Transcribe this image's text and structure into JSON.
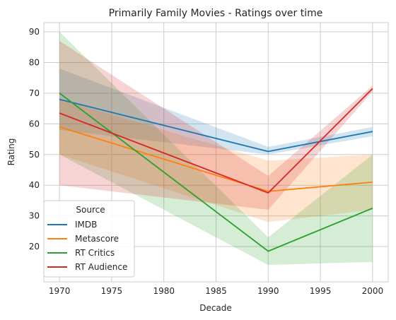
{
  "chart_data": {
    "type": "line",
    "title": "Primarily Family Movies - Ratings over time",
    "xlabel": "Decade",
    "ylabel": "Rating",
    "x": [
      1970,
      1990,
      2000
    ],
    "xlim": [
      1968.5,
      2001.5
    ],
    "ylim": [
      8.5,
      93
    ],
    "xticks": [
      1970,
      1975,
      1980,
      1985,
      1990,
      1995,
      2000
    ],
    "yticks": [
      20,
      30,
      40,
      50,
      60,
      70,
      80,
      90
    ],
    "grid": true,
    "legend": {
      "title": "Source",
      "position": "lower-left"
    },
    "series": [
      {
        "name": "IMDB",
        "color": "#1f77b4",
        "values": [
          68,
          51,
          57.5
        ],
        "lower": [
          58,
          50,
          56
        ],
        "upper": [
          78,
          52.5,
          59
        ]
      },
      {
        "name": "Metascore",
        "color": "#ff7f0e",
        "values": [
          59,
          38,
          41
        ],
        "lower": [
          50,
          28,
          32
        ],
        "upper": [
          68,
          48,
          50
        ]
      },
      {
        "name": "RT Critics",
        "color": "#2ca02c",
        "values": [
          70,
          18.5,
          32.5
        ],
        "lower": [
          50,
          14,
          15
        ],
        "upper": [
          90,
          23,
          50
        ]
      },
      {
        "name": "RT Audience",
        "color": "#d62728",
        "values": [
          63.5,
          37.5,
          71.5
        ],
        "lower": [
          40,
          32,
          70.5
        ],
        "upper": [
          87,
          43,
          72.5
        ]
      }
    ]
  }
}
